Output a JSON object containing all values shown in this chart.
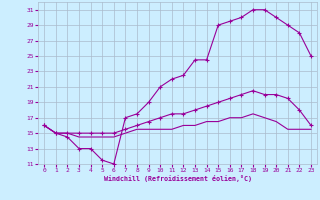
{
  "xlabel": "Windchill (Refroidissement éolien,°C)",
  "background_color": "#cceeff",
  "grid_color": "#aabbcc",
  "line_color": "#990099",
  "xlim": [
    -0.5,
    23.5
  ],
  "ylim": [
    11,
    32
  ],
  "yticks": [
    11,
    13,
    15,
    17,
    19,
    21,
    23,
    25,
    27,
    29,
    31
  ],
  "xticks": [
    0,
    1,
    2,
    3,
    4,
    5,
    6,
    7,
    8,
    9,
    10,
    11,
    12,
    13,
    14,
    15,
    16,
    17,
    18,
    19,
    20,
    21,
    22,
    23
  ],
  "line1_x": [
    0,
    1,
    2,
    3,
    4,
    5,
    6,
    7,
    8,
    9,
    10,
    11,
    12,
    13,
    14,
    15,
    16,
    17,
    18,
    19,
    20,
    21,
    22,
    23
  ],
  "line1_y": [
    16,
    15,
    14.5,
    13,
    13,
    11.5,
    11,
    17,
    17.5,
    19,
    21,
    22,
    22.5,
    24.5,
    24.5,
    29,
    29.5,
    30,
    31,
    31,
    30,
    29,
    28,
    25
  ],
  "line2_x": [
    0,
    1,
    2,
    3,
    4,
    5,
    6,
    7,
    8,
    9,
    10,
    11,
    12,
    13,
    14,
    15,
    16,
    17,
    18,
    19,
    20,
    21,
    22,
    23
  ],
  "line2_y": [
    16,
    15,
    15,
    15,
    15,
    15,
    15,
    15.5,
    16,
    16.5,
    17,
    17.5,
    17.5,
    18,
    18.5,
    19,
    19.5,
    20,
    20.5,
    20,
    20,
    19.5,
    18,
    16
  ],
  "line3_x": [
    0,
    1,
    2,
    3,
    4,
    5,
    6,
    7,
    8,
    9,
    10,
    11,
    12,
    13,
    14,
    15,
    16,
    17,
    18,
    19,
    20,
    21,
    22,
    23
  ],
  "line3_y": [
    16,
    15,
    15,
    14.5,
    14.5,
    14.5,
    14.5,
    15,
    15.5,
    15.5,
    15.5,
    15.5,
    16,
    16,
    16.5,
    16.5,
    17,
    17,
    17.5,
    17,
    16.5,
    15.5,
    15.5,
    15.5
  ]
}
